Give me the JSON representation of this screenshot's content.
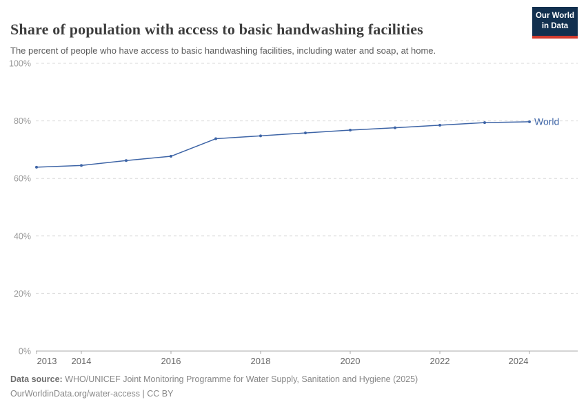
{
  "header": {
    "title": "Share of population with access to basic handwashing facilities",
    "subtitle": "The percent of people who have access to basic handwashing facilities, including water and soap, at home.",
    "logo": {
      "line1": "Our World",
      "line2": "in Data",
      "bg_color": "#12304f",
      "stripe_color": "#d23b2e"
    }
  },
  "chart_data": {
    "type": "line",
    "title": "Share of population with access to basic handwashing facilities",
    "xlabel": "",
    "ylabel": "",
    "x": [
      2013,
      2014,
      2015,
      2016,
      2017,
      2018,
      2019,
      2020,
      2021,
      2022,
      2023,
      2024
    ],
    "series": [
      {
        "name": "World",
        "color": "#3d64a6",
        "values": [
          63.9,
          64.5,
          66.2,
          67.7,
          73.8,
          74.8,
          75.8,
          76.8,
          77.6,
          78.5,
          79.4,
          79.7
        ]
      }
    ],
    "ylim": [
      0,
      100
    ],
    "yticks": [
      0,
      20,
      40,
      60,
      80,
      100
    ],
    "ytick_suffix": "%",
    "xticks": [
      2013,
      2014,
      2016,
      2018,
      2020,
      2022,
      2024
    ],
    "grid": "horizontal-dashed",
    "legend": "line-end-label",
    "colors": {
      "gridline": "#dadada",
      "axis_line": "#a9a9a9",
      "ytick_label": "#9a9a9a",
      "xtick_label": "#666666"
    }
  },
  "footer": {
    "source_label": "Data source:",
    "source_text": " WHO/UNICEF Joint Monitoring Programme for Water Supply, Sanitation and Hygiene (2025)",
    "link_line": "OurWorldinData.org/water-access | CC BY"
  }
}
